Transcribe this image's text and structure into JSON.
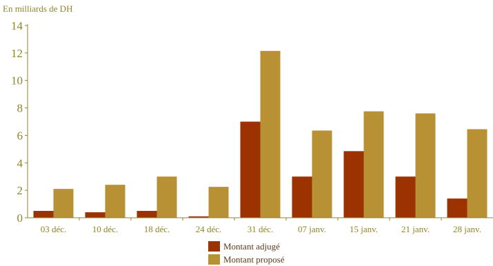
{
  "colors": {
    "adjuge": "#9b3200",
    "propose": "#b89135",
    "axis": "#8f8529",
    "tick_text": "#8f8529"
  },
  "chart_data": {
    "type": "bar",
    "unit_label": "En milliards de DH",
    "categories": [
      "03 déc.",
      "10 déc.",
      "18 déc.",
      "24 déc.",
      "31 déc.",
      "07 janv.",
      "15 janv.",
      "21 janv.",
      "28 janv."
    ],
    "series": [
      {
        "name": "Montant adjugé",
        "values": [
          0.5,
          0.4,
          0.5,
          0.1,
          7.0,
          3.0,
          4.85,
          3.0,
          1.4
        ]
      },
      {
        "name": "Montant proposé",
        "values": [
          2.1,
          2.4,
          3.0,
          2.25,
          12.15,
          6.35,
          7.75,
          7.6,
          6.45
        ]
      }
    ],
    "yticks": [
      0,
      2,
      4,
      6,
      8,
      10,
      12,
      14
    ],
    "ylim": [
      0,
      14
    ],
    "legend_position": "bottom-center",
    "grid": false
  }
}
